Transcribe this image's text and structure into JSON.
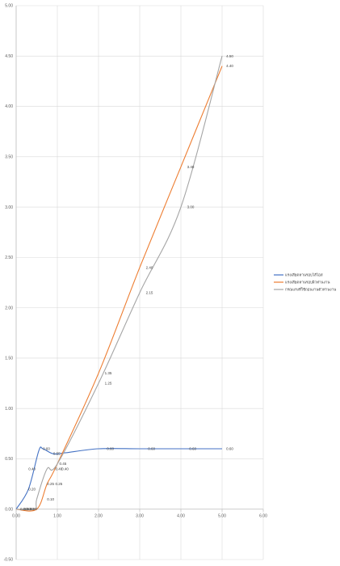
{
  "chart_data": {
    "type": "line",
    "xlim": [
      0,
      6
    ],
    "ylim": [
      -0.5,
      5
    ],
    "x_ticks": [
      "0.00",
      "1.00",
      "2.00",
      "3.00",
      "4.00",
      "5.00",
      "6.00"
    ],
    "y_ticks": [
      "-0.50",
      "0.00",
      "0.50",
      "1.00",
      "1.50",
      "2.00",
      "2.50",
      "3.00",
      "3.50",
      "4.00",
      "4.50",
      "5.00"
    ],
    "grid": true,
    "legend_position": "right",
    "smooth": true,
    "series": [
      {
        "name": "แรงเสียดทานรอบไส้ไอส",
        "color": "#4472C4",
        "points": [
          [
            0.0,
            0.0
          ],
          [
            0.3,
            0.2
          ],
          [
            0.55,
            0.58
          ],
          [
            0.65,
            0.6
          ],
          [
            0.9,
            0.55
          ],
          [
            1.2,
            0.56
          ],
          [
            2.0,
            0.6
          ],
          [
            3.0,
            0.6
          ],
          [
            4.0,
            0.6
          ],
          [
            5.0,
            0.6
          ]
        ],
        "labels": [
          {
            "x": 0.3,
            "y": 0.2,
            "text": "0.20"
          },
          {
            "x": 0.65,
            "y": 0.6,
            "text": "0.60"
          },
          {
            "x": 0.9,
            "y": 0.55,
            "text": "0.55"
          },
          {
            "x": 2.2,
            "y": 0.6,
            "text": "0.60"
          },
          {
            "x": 3.2,
            "y": 0.6,
            "text": "0.60"
          },
          {
            "x": 4.2,
            "y": 0.6,
            "text": "0.60"
          },
          {
            "x": 5.1,
            "y": 0.6,
            "text": "0.60"
          }
        ]
      },
      {
        "name": "แรงเสียดทานรอบผิวท่านงาน",
        "color": "#ED7D31",
        "points": [
          [
            0.0,
            0.0
          ],
          [
            0.5,
            0.0
          ],
          [
            0.75,
            0.25
          ],
          [
            1.0,
            0.45
          ],
          [
            2.0,
            1.35
          ],
          [
            3.0,
            2.4
          ],
          [
            4.0,
            3.4
          ],
          [
            5.0,
            4.4
          ]
        ],
        "labels": [
          {
            "x": 0.75,
            "y": 0.25,
            "text": "0.25"
          },
          {
            "x": 1.05,
            "y": 0.45,
            "text": "0.45"
          },
          {
            "x": 2.15,
            "y": 1.35,
            "text": "1.35"
          },
          {
            "x": 3.15,
            "y": 2.4,
            "text": "2.40"
          },
          {
            "x": 4.15,
            "y": 3.4,
            "text": "3.40"
          },
          {
            "x": 5.1,
            "y": 4.4,
            "text": "4.40"
          }
        ]
      },
      {
        "name": "กรณแรงที่ใช้ถอนงานตัวท่านงาน",
        "color": "#A5A5A5",
        "points": [
          [
            0.0,
            0.0
          ],
          [
            0.45,
            0.0
          ],
          [
            0.5,
            0.1
          ],
          [
            0.75,
            0.4
          ],
          [
            1.0,
            0.45
          ],
          [
            2.0,
            1.25
          ],
          [
            3.0,
            2.15
          ],
          [
            4.0,
            3.0
          ],
          [
            5.0,
            4.5
          ]
        ],
        "labels": [
          {
            "x": 0.3,
            "y": 0.4,
            "text": "0.40"
          },
          {
            "x": 0.75,
            "y": 0.1,
            "text": "0.10"
          },
          {
            "x": 0.95,
            "y": 0.25,
            "text": "0.25"
          },
          {
            "x": 0.95,
            "y": 0.4,
            "text": "0.40"
          },
          {
            "x": 1.1,
            "y": 0.4,
            "text": "0.40"
          },
          {
            "x": 2.15,
            "y": 1.25,
            "text": "1.25"
          },
          {
            "x": 3.15,
            "y": 2.15,
            "text": "2.15"
          },
          {
            "x": 4.15,
            "y": 3.0,
            "text": "3.00"
          },
          {
            "x": 5.1,
            "y": 4.5,
            "text": "4.50"
          }
        ]
      }
    ],
    "origin_labels": [
      "0.00",
      "0.00",
      "0.00",
      "0.00"
    ]
  }
}
